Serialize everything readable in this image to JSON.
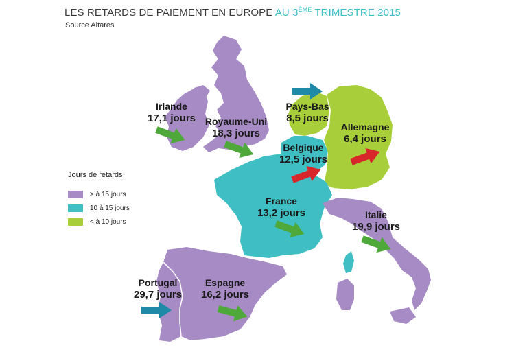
{
  "title": {
    "part1": "LES RETARDS DE PAIEMENT EN EUROPE ",
    "part2": "AU 3",
    "sup": "ÈME",
    "part3": " TRIMESTRE 2015"
  },
  "source": "Source Altares",
  "legend": {
    "title": "Jours de retards",
    "items": [
      {
        "label": "> à 15 jours",
        "color": "#a78bc4"
      },
      {
        "label": "10 à 15 jours",
        "color": "#3fbfc4"
      },
      {
        "label": "< à 10 jours",
        "color": "#a8cf3a"
      }
    ]
  },
  "colors": {
    "purple": "#a78bc4",
    "teal": "#3fbfc4",
    "green": "#a8cf3a",
    "arrow_green": "#4fa83a",
    "arrow_red": "#d8262b",
    "arrow_blue": "#1e8aa8"
  },
  "countries": [
    {
      "name": "Irlande",
      "value": "17,1 jours",
      "category": "purple",
      "trend": "green"
    },
    {
      "name": "Royaume-Uni",
      "value": "18,3 jours",
      "category": "purple",
      "trend": "green"
    },
    {
      "name": "Pays-Bas",
      "value": "8,5 jours",
      "category": "green",
      "trend": "blue"
    },
    {
      "name": "Allemagne",
      "value": "6,4 jours",
      "category": "green",
      "trend": "red"
    },
    {
      "name": "Belgique",
      "value": "12,5 jours",
      "category": "teal",
      "trend": "red"
    },
    {
      "name": "France",
      "value": "13,2 jours",
      "category": "teal",
      "trend": "green"
    },
    {
      "name": "Italie",
      "value": "19,9 jours",
      "category": "purple",
      "trend": "green"
    },
    {
      "name": "Portugal",
      "value": "29,7 jours",
      "category": "purple",
      "trend": "blue"
    },
    {
      "name": "Espagne",
      "value": "16,2 jours",
      "category": "purple",
      "trend": "green"
    }
  ]
}
